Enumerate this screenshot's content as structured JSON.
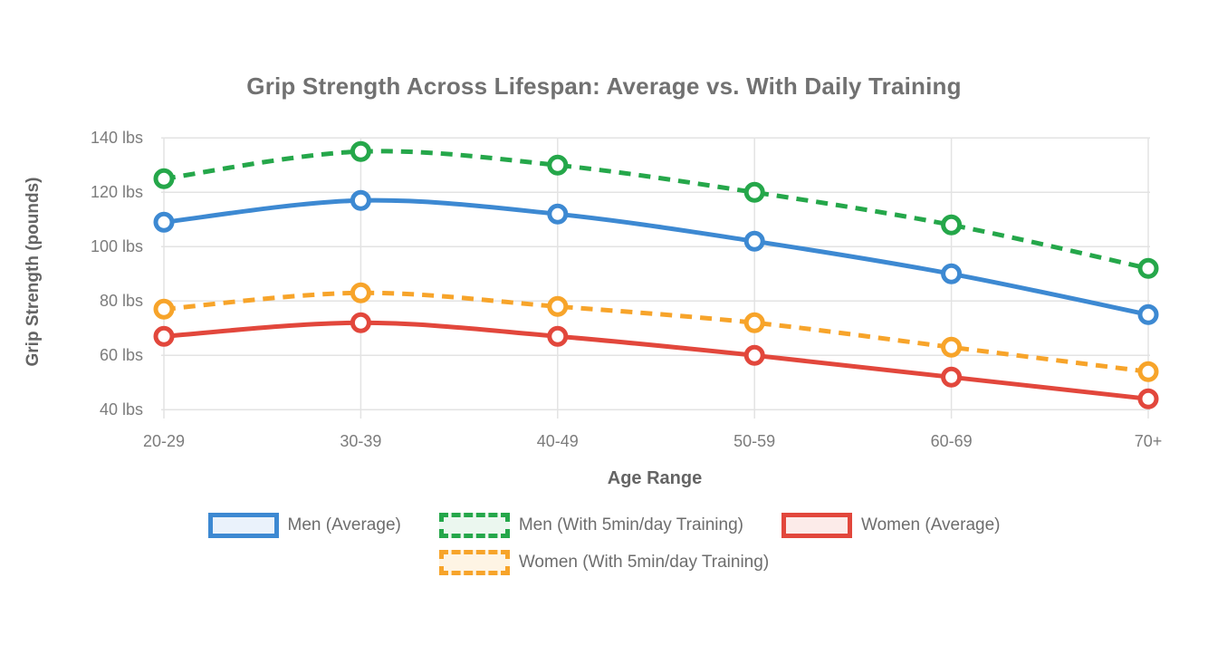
{
  "title": "Grip Strength Across Lifespan: Average vs. With Daily Training",
  "chart_data": {
    "type": "line",
    "title": "Grip Strength Across Lifespan: Average vs. With Daily Training",
    "xlabel": "Age Range",
    "ylabel": "Grip Strength (pounds)",
    "categories": [
      "20-29",
      "30-39",
      "40-49",
      "50-59",
      "60-69",
      "70+"
    ],
    "ylim": [
      40,
      140
    ],
    "grid": true,
    "legend_position": "bottom",
    "y_ticks": [
      {
        "value": 140,
        "label": "140 lbs"
      },
      {
        "value": 120,
        "label": "120 lbs"
      },
      {
        "value": 100,
        "label": "100 lbs"
      },
      {
        "value": 80,
        "label": "80 lbs"
      },
      {
        "value": 60,
        "label": "60 lbs"
      },
      {
        "value": 40,
        "label": "40 lbs"
      }
    ],
    "series": [
      {
        "key": "men-average",
        "name": "Men (Average)",
        "color": "#3d89d2",
        "legend_fill": "#eaf2fb",
        "dashed": false,
        "values": [
          109,
          117,
          112,
          102,
          90,
          75
        ]
      },
      {
        "key": "men-training",
        "name": "Men (With 5min/day Training)",
        "color": "#25a74a",
        "legend_fill": "#ebf7ef",
        "dashed": true,
        "values": [
          125,
          135,
          130,
          120,
          108,
          92
        ]
      },
      {
        "key": "women-average",
        "name": "Women (Average)",
        "color": "#e2473c",
        "legend_fill": "#fcebe9",
        "dashed": false,
        "values": [
          67,
          72,
          67,
          60,
          52,
          44
        ]
      },
      {
        "key": "women-training",
        "name": "Women (With 5min/day Training)",
        "color": "#f7a42a",
        "legend_fill": "#fef4e4",
        "dashed": true,
        "values": [
          77,
          83,
          78,
          72,
          63,
          54
        ]
      }
    ],
    "legend_rows": [
      [
        "men-average",
        "men-training",
        "women-average"
      ],
      [
        "women-training"
      ]
    ]
  }
}
